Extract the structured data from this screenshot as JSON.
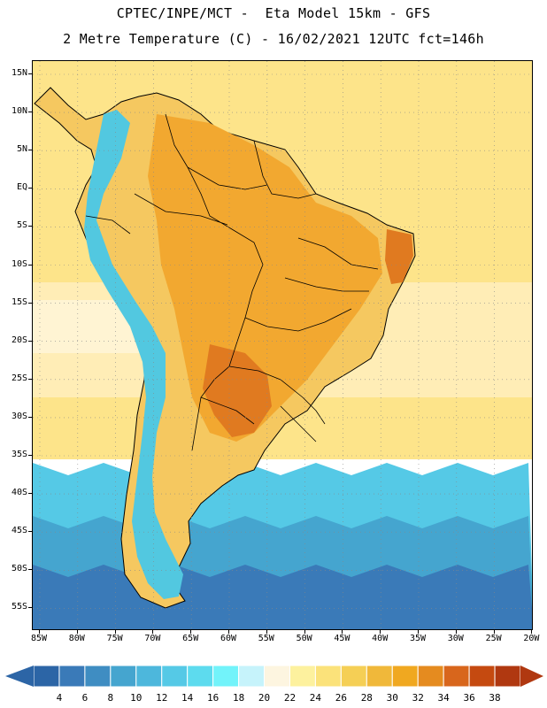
{
  "header": {
    "line1": "CPTEC/INPE/MCT -  Eta Model 15km - GFS",
    "line2": "2 Metre Temperature (C) - 16/02/2021 12UTC fct=146h"
  },
  "map": {
    "lat_labels": [
      "15N",
      "10N",
      "5N",
      "EQ",
      "5S",
      "10S",
      "15S",
      "20S",
      "25S",
      "30S",
      "35S",
      "40S",
      "45S",
      "50S",
      "55S"
    ],
    "lon_labels": [
      "85W",
      "80W",
      "75W",
      "70W",
      "65W",
      "60W",
      "55W",
      "50W",
      "45W",
      "40W",
      "35W",
      "30W",
      "25W",
      "20W"
    ],
    "colors": {
      "ocean_warm": "#fde48a",
      "ocean_mid": "#fff0c4",
      "ocean_cool": "#fff8e6",
      "cold_south": "#3a7ab8",
      "land_hot": "#f2a830",
      "land_very_hot": "#e07a20",
      "land_warm": "#f5c860",
      "andes": "#52c8e0",
      "border": "#000000",
      "grid": "#888888"
    }
  },
  "colorbar": {
    "labels": [
      "4",
      "6",
      "8",
      "10",
      "12",
      "14",
      "16",
      "18",
      "20",
      "22",
      "24",
      "26",
      "28",
      "30",
      "32",
      "34",
      "36",
      "38"
    ],
    "colors": [
      "#2c65a6",
      "#3a7ab8",
      "#3f8dc2",
      "#45a5cf",
      "#4db7dc",
      "#55c9e6",
      "#5ddbee",
      "#72f3fa",
      "#c6f3fb",
      "#fdf5e0",
      "#fdf19e",
      "#fbe27a",
      "#f5cf55",
      "#f0b83a",
      "#f0a820",
      "#e58b1f",
      "#d8661c",
      "#c54a10",
      "#b03810"
    ]
  }
}
